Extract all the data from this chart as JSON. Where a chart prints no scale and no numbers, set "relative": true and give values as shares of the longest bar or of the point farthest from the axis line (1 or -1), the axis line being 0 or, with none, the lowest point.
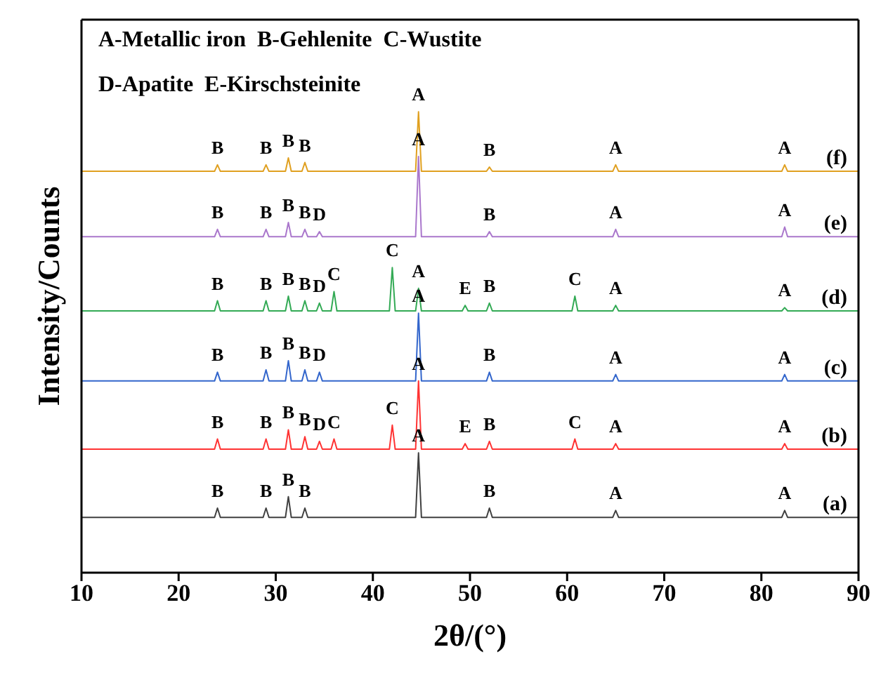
{
  "chart_data": {
    "type": "line",
    "relative": true,
    "xlabel": "2θ/(°)",
    "ylabel": "Intensity/Counts",
    "xlim": [
      10,
      90
    ],
    "xticks": [
      10,
      20,
      30,
      40,
      50,
      60,
      70,
      80,
      90
    ],
    "grid": false,
    "legend": false,
    "marker": "none",
    "line_style": "solid",
    "series": [
      {
        "name": "(a)",
        "color": "#404040",
        "x": [
          10,
          23.7,
          24,
          24.3,
          28.7,
          29,
          29.3,
          31,
          31.3,
          31.6,
          32.7,
          33,
          33.3,
          44.4,
          44.7,
          45,
          51.7,
          52,
          52.3,
          64.7,
          65,
          65.3,
          82.1,
          82.4,
          82.7,
          90
        ],
        "values": [
          0.12,
          0.12,
          0.14,
          0.12,
          0.12,
          0.14,
          0.12,
          0.12,
          0.165,
          0.12,
          0.12,
          0.14,
          0.12,
          0.12,
          0.26,
          0.12,
          0.12,
          0.14,
          0.12,
          0.12,
          0.135,
          0.12,
          0.12,
          0.135,
          0.12,
          0.12
        ]
      },
      {
        "name": "(b)",
        "color": "#ff3333",
        "x": [
          10,
          23.7,
          24,
          24.3,
          28.7,
          29,
          29.3,
          31,
          31.3,
          31.6,
          32.7,
          33,
          33.3,
          34.2,
          34.5,
          34.8,
          35.7,
          36,
          36.3,
          41.7,
          42,
          42.3,
          44.4,
          44.7,
          45,
          49.2,
          49.5,
          49.8,
          51.7,
          52,
          52.3,
          60.5,
          60.8,
          61.1,
          64.7,
          65,
          65.3,
          82.1,
          82.4,
          82.7,
          90
        ],
        "values": [
          0.268,
          0.268,
          0.29,
          0.268,
          0.268,
          0.29,
          0.268,
          0.268,
          0.31,
          0.268,
          0.268,
          0.295,
          0.268,
          0.268,
          0.285,
          0.268,
          0.268,
          0.29,
          0.268,
          0.268,
          0.32,
          0.268,
          0.268,
          0.416,
          0.268,
          0.268,
          0.28,
          0.268,
          0.268,
          0.285,
          0.268,
          0.268,
          0.29,
          0.268,
          0.268,
          0.28,
          0.268,
          0.268,
          0.28,
          0.268,
          0.268
        ]
      },
      {
        "name": "(c)",
        "color": "#3366cc",
        "x": [
          10,
          23.7,
          24,
          24.3,
          28.7,
          29,
          29.3,
          31,
          31.3,
          31.6,
          32.7,
          33,
          33.3,
          34.2,
          34.5,
          34.8,
          44.4,
          44.7,
          45,
          51.7,
          52,
          52.3,
          64.7,
          65,
          65.3,
          82.1,
          82.4,
          82.7,
          90
        ],
        "values": [
          0.416,
          0.416,
          0.435,
          0.416,
          0.416,
          0.44,
          0.416,
          0.416,
          0.46,
          0.416,
          0.416,
          0.44,
          0.416,
          0.416,
          0.435,
          0.416,
          0.416,
          0.563,
          0.416,
          0.416,
          0.435,
          0.416,
          0.416,
          0.43,
          0.416,
          0.416,
          0.43,
          0.416,
          0.416
        ]
      },
      {
        "name": "(d)",
        "color": "#33aa55",
        "x": [
          10,
          23.7,
          24,
          24.3,
          28.7,
          29,
          29.3,
          31,
          31.3,
          31.6,
          32.7,
          33,
          33.3,
          34.2,
          34.5,
          34.8,
          35.7,
          36,
          36.3,
          41.7,
          42,
          42.3,
          44.4,
          44.7,
          45,
          49.2,
          49.5,
          49.8,
          51.7,
          52,
          52.3,
          60.5,
          60.8,
          61.1,
          64.7,
          65,
          65.3,
          82.1,
          82.4,
          82.7,
          90
        ],
        "values": [
          0.568,
          0.568,
          0.59,
          0.568,
          0.568,
          0.59,
          0.568,
          0.568,
          0.6,
          0.568,
          0.568,
          0.59,
          0.568,
          0.568,
          0.585,
          0.568,
          0.568,
          0.61,
          0.568,
          0.568,
          0.662,
          0.568,
          0.568,
          0.617,
          0.568,
          0.568,
          0.58,
          0.568,
          0.568,
          0.585,
          0.568,
          0.568,
          0.6,
          0.568,
          0.568,
          0.58,
          0.568,
          0.568,
          0.575,
          0.568,
          0.568
        ]
      },
      {
        "name": "(e)",
        "color": "#aa77cc",
        "x": [
          10,
          23.7,
          24,
          24.3,
          28.7,
          29,
          29.3,
          31,
          31.3,
          31.6,
          32.7,
          33,
          33.3,
          34.2,
          34.5,
          34.8,
          44.4,
          44.7,
          45,
          51.7,
          52,
          52.3,
          64.7,
          65,
          65.3,
          82.1,
          82.4,
          82.7,
          90
        ],
        "values": [
          0.729,
          0.729,
          0.745,
          0.729,
          0.729,
          0.745,
          0.729,
          0.729,
          0.76,
          0.729,
          0.729,
          0.745,
          0.729,
          0.729,
          0.74,
          0.729,
          0.729,
          0.903,
          0.729,
          0.729,
          0.74,
          0.729,
          0.729,
          0.745,
          0.729,
          0.729,
          0.75,
          0.729,
          0.729
        ]
      },
      {
        "name": "(f)",
        "color": "#e0a020",
        "x": [
          10,
          23.7,
          24,
          24.3,
          28.7,
          29,
          29.3,
          31,
          31.3,
          31.6,
          32.7,
          33,
          33.3,
          44.4,
          44.7,
          45,
          51.7,
          52,
          52.3,
          64.7,
          65,
          65.3,
          82.1,
          82.4,
          82.7,
          90
        ],
        "values": [
          0.871,
          0.871,
          0.885,
          0.871,
          0.871,
          0.885,
          0.871,
          0.871,
          0.9,
          0.871,
          0.871,
          0.89,
          0.871,
          0.871,
          1.0,
          0.871,
          0.871,
          0.88,
          0.871,
          0.871,
          0.885,
          0.871,
          0.871,
          0.885,
          0.871,
          0.871
        ]
      }
    ],
    "annotations": [
      "A-Metallic iron  B-Gehlenite  C-Wustite",
      "D-Apatite  E-Kirschsteinite",
      {
        "text": "B",
        "x": 24,
        "y": 0.14
      },
      {
        "text": "B",
        "x": 29,
        "y": 0.14
      },
      {
        "text": "B",
        "x": 31.3,
        "y": 0.165
      },
      {
        "text": "B",
        "x": 33,
        "y": 0.14
      },
      {
        "text": "A",
        "x": 44.7,
        "y": 0.26
      },
      {
        "text": "B",
        "x": 52,
        "y": 0.14
      },
      {
        "text": "A",
        "x": 65,
        "y": 0.135
      },
      {
        "text": "A",
        "x": 82.4,
        "y": 0.135
      },
      {
        "text": "B",
        "x": 24,
        "y": 0.29
      },
      {
        "text": "B",
        "x": 29,
        "y": 0.29
      },
      {
        "text": "B",
        "x": 31.3,
        "y": 0.31
      },
      {
        "text": "B",
        "x": 33,
        "y": 0.295
      },
      {
        "text": "D",
        "x": 34.5,
        "y": 0.285
      },
      {
        "text": "C",
        "x": 36,
        "y": 0.29
      },
      {
        "text": "C",
        "x": 42,
        "y": 0.32
      },
      {
        "text": "A",
        "x": 44.7,
        "y": 0.416
      },
      {
        "text": "E",
        "x": 49.5,
        "y": 0.28
      },
      {
        "text": "B",
        "x": 52,
        "y": 0.285
      },
      {
        "text": "C",
        "x": 60.8,
        "y": 0.29
      },
      {
        "text": "A",
        "x": 65,
        "y": 0.28
      },
      {
        "text": "A",
        "x": 82.4,
        "y": 0.28
      },
      {
        "text": "B",
        "x": 24,
        "y": 0.435
      },
      {
        "text": "B",
        "x": 29,
        "y": 0.44
      },
      {
        "text": "B",
        "x": 31.3,
        "y": 0.46
      },
      {
        "text": "B",
        "x": 33,
        "y": 0.44
      },
      {
        "text": "D",
        "x": 34.5,
        "y": 0.435
      },
      {
        "text": "A",
        "x": 44.7,
        "y": 0.563
      },
      {
        "text": "B",
        "x": 52,
        "y": 0.435
      },
      {
        "text": "A",
        "x": 65,
        "y": 0.43
      },
      {
        "text": "A",
        "x": 82.4,
        "y": 0.43
      },
      {
        "text": "B",
        "x": 24,
        "y": 0.59
      },
      {
        "text": "B",
        "x": 29,
        "y": 0.59
      },
      {
        "text": "B",
        "x": 31.3,
        "y": 0.6
      },
      {
        "text": "B",
        "x": 33,
        "y": 0.59
      },
      {
        "text": "D",
        "x": 34.5,
        "y": 0.585
      },
      {
        "text": "C",
        "x": 36,
        "y": 0.61
      },
      {
        "text": "C",
        "x": 42,
        "y": 0.662
      },
      {
        "text": "A",
        "x": 44.7,
        "y": 0.617
      },
      {
        "text": "E",
        "x": 49.5,
        "y": 0.58
      },
      {
        "text": "B",
        "x": 52,
        "y": 0.585
      },
      {
        "text": "C",
        "x": 60.8,
        "y": 0.6
      },
      {
        "text": "A",
        "x": 65,
        "y": 0.58
      },
      {
        "text": "A",
        "x": 82.4,
        "y": 0.575
      },
      {
        "text": "B",
        "x": 24,
        "y": 0.745
      },
      {
        "text": "B",
        "x": 29,
        "y": 0.745
      },
      {
        "text": "B",
        "x": 31.3,
        "y": 0.76
      },
      {
        "text": "B",
        "x": 33,
        "y": 0.745
      },
      {
        "text": "D",
        "x": 34.5,
        "y": 0.74
      },
      {
        "text": "A",
        "x": 44.7,
        "y": 0.903
      },
      {
        "text": "B",
        "x": 52,
        "y": 0.74
      },
      {
        "text": "A",
        "x": 65,
        "y": 0.745
      },
      {
        "text": "A",
        "x": 82.4,
        "y": 0.75
      },
      {
        "text": "B",
        "x": 24,
        "y": 0.885
      },
      {
        "text": "B",
        "x": 29,
        "y": 0.885
      },
      {
        "text": "B",
        "x": 31.3,
        "y": 0.9
      },
      {
        "text": "B",
        "x": 33,
        "y": 0.89
      },
      {
        "text": "A",
        "x": 44.7,
        "y": 1.0
      },
      {
        "text": "B",
        "x": 52,
        "y": 0.88
      },
      {
        "text": "A",
        "x": 65,
        "y": 0.885
      },
      {
        "text": "A",
        "x": 82.4,
        "y": 0.885
      }
    ]
  }
}
